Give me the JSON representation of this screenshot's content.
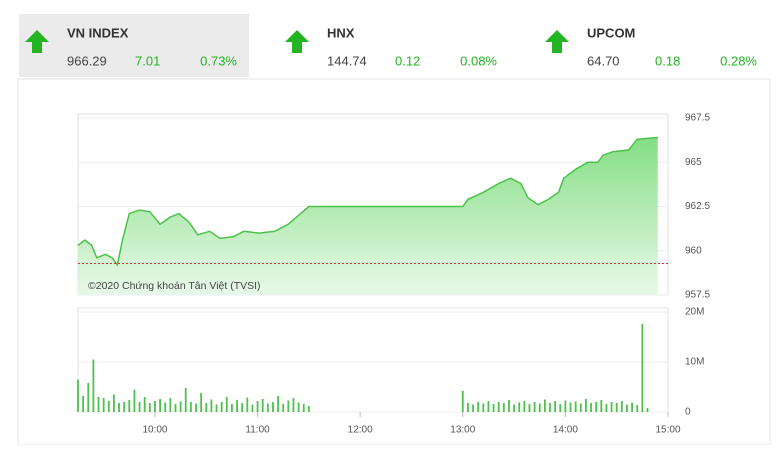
{
  "indices": [
    {
      "name": "VN INDEX",
      "value": "966.29",
      "change": "7.01",
      "percent": "0.73%"
    },
    {
      "name": "HNX",
      "value": "144.74",
      "change": "0.12",
      "percent": "0.08%"
    },
    {
      "name": "UPCOM",
      "value": "64.70",
      "change": "0.18",
      "percent": "0.28%"
    }
  ],
  "chart_data": [
    {
      "type": "area",
      "annotation": "©2020 Chứng khoán Tân Việt (TVSI)",
      "color": "#4cc24c",
      "reference": 959.28,
      "reference_color": "#e03030",
      "x": [
        555,
        559,
        563,
        566,
        571,
        575,
        578,
        581,
        585,
        591,
        597,
        603,
        609,
        614,
        620,
        625,
        632,
        638,
        646,
        652,
        661,
        670,
        678,
        684,
        690,
        780,
        783,
        792,
        801,
        808,
        814,
        818,
        824,
        830,
        836,
        839,
        846,
        853,
        859,
        862,
        868,
        877,
        882,
        894
      ],
      "values": [
        960.3,
        960.6,
        960.3,
        959.6,
        959.8,
        959.6,
        959.2,
        960.6,
        962.1,
        962.3,
        962.2,
        961.5,
        961.9,
        962.1,
        961.6,
        960.9,
        961.1,
        960.7,
        960.8,
        961.1,
        961.0,
        961.1,
        961.5,
        962.0,
        962.5,
        962.5,
        962.9,
        963.3,
        963.8,
        964.1,
        963.8,
        963.0,
        962.6,
        962.9,
        963.3,
        964.1,
        964.6,
        965.0,
        965.0,
        965.4,
        965.6,
        965.7,
        966.3,
        966.4
      ],
      "xlim": [
        555,
        900
      ],
      "ylim": [
        957.5,
        967.5
      ],
      "yticks": [
        957.5,
        960,
        962.5,
        965,
        967.5
      ],
      "grid": true
    },
    {
      "type": "bar",
      "color": "#4cc24c",
      "x": [
        555,
        558,
        561,
        564,
        567,
        570,
        573,
        576,
        579,
        582,
        585,
        588,
        591,
        594,
        597,
        600,
        603,
        606,
        609,
        612,
        615,
        618,
        621,
        624,
        627,
        630,
        633,
        636,
        639,
        642,
        645,
        648,
        651,
        654,
        657,
        660,
        663,
        666,
        669,
        672,
        675,
        678,
        681,
        684,
        687,
        690,
        780,
        783,
        786,
        789,
        792,
        795,
        798,
        801,
        804,
        807,
        810,
        813,
        816,
        819,
        822,
        825,
        828,
        831,
        834,
        837,
        840,
        843,
        846,
        849,
        852,
        855,
        858,
        861,
        864,
        867,
        870,
        873,
        876,
        879,
        882,
        885,
        888
      ],
      "values": [
        6500000,
        3200000,
        5800000,
        10500000,
        3000000,
        2800000,
        2200000,
        3500000,
        1800000,
        2000000,
        2400000,
        4500000,
        2000000,
        3000000,
        1800000,
        2200000,
        2600000,
        1900000,
        2800000,
        1600000,
        2100000,
        4800000,
        2000000,
        1700000,
        3800000,
        1800000,
        2500000,
        1500000,
        2000000,
        3000000,
        1600000,
        2400000,
        1800000,
        2900000,
        1500000,
        2200000,
        2600000,
        1700000,
        2000000,
        3200000,
        1600000,
        2300000,
        2800000,
        1900000,
        1600000,
        1200000,
        4200000,
        1800000,
        1500000,
        2000000,
        1700000,
        2200000,
        1600000,
        2000000,
        1800000,
        2400000,
        1500000,
        1900000,
        2200000,
        1600000,
        2000000,
        1700000,
        2500000,
        1800000,
        2200000,
        1600000,
        2300000,
        1900000,
        2100000,
        1700000,
        2600000,
        1800000,
        2000000,
        2400000,
        1600000,
        2000000,
        1800000,
        2200000,
        1500000,
        1900000,
        1400000,
        17600000,
        800000
      ],
      "xlim": [
        555,
        900
      ],
      "ylim": [
        0,
        20000000
      ],
      "yticks": [
        0,
        {
          "value": 10000000,
          "label": "10M"
        },
        {
          "value": 20000000,
          "label": "20M"
        }
      ],
      "xticks": [
        {
          "value": 600,
          "label": "10:00"
        },
        {
          "value": 660,
          "label": "11:00"
        },
        {
          "value": 720,
          "label": "12:00"
        },
        {
          "value": 780,
          "label": "13:00"
        },
        {
          "value": 840,
          "label": "14:00"
        },
        {
          "value": 900,
          "label": "15:00"
        }
      ],
      "grid": true
    }
  ]
}
